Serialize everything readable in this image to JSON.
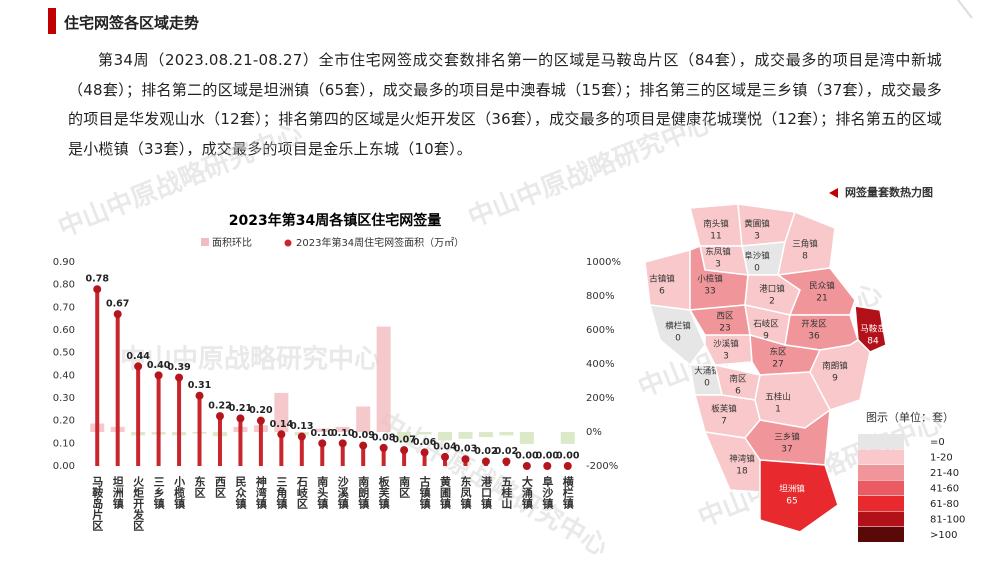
{
  "header": {
    "title": "住宅网签各区域走势"
  },
  "paragraph": "第34周（2023.08.21-08.27）全市住宅网签成交套数排名第一的区域是马鞍岛片区（84套），成交最多的项目是湾中新城（48套）；排名第二的区域是坦洲镇（65套），成交最多的项目是中澳春城（15套）；排名第三的区域是三乡镇（37套），成交最多的项目是华发观山水（12套）；排名第四的区域是火炬开发区（36套），成交最多的项目是健康花城璞悦（12套）；排名第五的区域是小榄镇（33套），成交最多的项目是金乐上东城（10套）。",
  "watermark": "中山中原战略研究中心",
  "chart_data": {
    "type": "bar",
    "title": "2023年第34周各镇区住宅网签量",
    "categories": [
      "马鞍岛片区",
      "坦洲镇",
      "火炬开发区",
      "三乡镇",
      "小榄镇",
      "东区",
      "西区",
      "民众镇",
      "神湾镇",
      "三角镇",
      "石岐区",
      "南头镇",
      "沙溪镇",
      "南朗镇",
      "板芙镇",
      "南区",
      "古镇镇",
      "黄圃镇",
      "东凤镇",
      "港口镇",
      "五桂山",
      "大涌镇",
      "阜沙镇",
      "横栏镇"
    ],
    "series": [
      {
        "name": "面积环比",
        "type": "bar",
        "axis": "y2",
        "color": "#f3bcbf",
        "negative_color": "#d3e4bb",
        "values": [
          50,
          30,
          -20,
          -15,
          -20,
          -10,
          -25,
          30,
          40,
          230,
          -20,
          20,
          30,
          150,
          620,
          -60,
          -15,
          -50,
          -40,
          -30,
          -20,
          -70,
          0,
          -70
        ]
      },
      {
        "name": "2023年第34周住宅网签面积（万㎡）",
        "type": "lollipop",
        "color": "#c8262c",
        "values": [
          0.78,
          0.67,
          0.44,
          0.4,
          0.39,
          0.31,
          0.22,
          0.21,
          0.2,
          0.14,
          0.13,
          0.1,
          0.1,
          0.09,
          0.08,
          0.07,
          0.06,
          0.04,
          0.03,
          0.02,
          0.02,
          0,
          0,
          0
        ],
        "value_labels": [
          "0.78",
          "0.67",
          "0.44",
          "0.40",
          "0.39",
          "0.31",
          "0.22",
          "0.21",
          "0.20",
          "0.14",
          "0.13",
          "0.10",
          "0.10",
          "0.09",
          "0.08",
          "0.07",
          "0.06",
          "0.04",
          "0.03",
          "0.02",
          "0.02",
          "0.00",
          "0.00",
          "0.00"
        ]
      }
    ],
    "ylim": [
      0,
      0.9
    ],
    "yticks": [
      {
        "value": 0,
        "label": "0.00"
      },
      {
        "value": 0.1,
        "label": "0.10"
      },
      {
        "value": 0.2,
        "label": "0.20"
      },
      {
        "value": 0.3,
        "label": "0.30"
      },
      {
        "value": 0.4,
        "label": "0.40"
      },
      {
        "value": 0.5,
        "label": "0.50"
      },
      {
        "value": 0.6,
        "label": "0.60"
      },
      {
        "value": 0.7,
        "label": "0.70"
      },
      {
        "value": 0.8,
        "label": "0.80"
      },
      {
        "value": 0.9,
        "label": "0.90"
      }
    ],
    "y2lim": [
      -200,
      1000
    ],
    "y2ticks": [
      {
        "value": -200,
        "label": "-200%"
      },
      {
        "value": 0,
        "label": "0%"
      },
      {
        "value": 200,
        "label": "200%"
      },
      {
        "value": 400,
        "label": "400%"
      },
      {
        "value": 600,
        "label": "600%"
      },
      {
        "value": 800,
        "label": "800%"
      },
      {
        "value": 1000,
        "label": "1000%"
      }
    ]
  },
  "map": {
    "title": "网签量套数热力图",
    "legend_title": "图示（单位：套）",
    "legend": [
      {
        "label": "=0",
        "color": "#e6e6e6"
      },
      {
        "label": "1-20",
        "color": "#f8c8ca"
      },
      {
        "label": "21-40",
        "color": "#f0969b"
      },
      {
        "label": "41-60",
        "color": "#ea5a62"
      },
      {
        "label": "61-80",
        "color": "#e82a2f"
      },
      {
        "label": "81-100",
        "color": "#b3111a"
      },
      {
        "label": ">100",
        "color": "#5a0808"
      }
    ],
    "regions": [
      {
        "name": "南头镇",
        "value": 11,
        "color": "#f8c8ca"
      },
      {
        "name": "黄圃镇",
        "value": 3,
        "color": "#f8c8ca"
      },
      {
        "name": "阜沙镇",
        "value": 0,
        "color": "#e6e6e6"
      },
      {
        "name": "东凤镇",
        "value": 3,
        "color": "#f8c8ca"
      },
      {
        "name": "三角镇",
        "value": 8,
        "color": "#f8c8ca"
      },
      {
        "name": "古镇镇",
        "value": 6,
        "color": "#f8c8ca"
      },
      {
        "name": "小榄镇",
        "value": 33,
        "color": "#f0969b"
      },
      {
        "name": "港口镇",
        "value": 2,
        "color": "#f8c8ca"
      },
      {
        "name": "民众镇",
        "value": 21,
        "color": "#f0969b"
      },
      {
        "name": "马鞍岛",
        "value": 84,
        "color": "#b3111a"
      },
      {
        "name": "横栏镇",
        "value": 0,
        "color": "#e6e6e6"
      },
      {
        "name": "西区",
        "value": 23,
        "color": "#f0969b"
      },
      {
        "name": "石岐区",
        "value": 9,
        "color": "#f8c8ca"
      },
      {
        "name": "开发区",
        "value": 36,
        "color": "#f0969b"
      },
      {
        "name": "沙溪镇",
        "value": 3,
        "color": "#f8c8ca"
      },
      {
        "name": "东区",
        "value": 27,
        "color": "#f0969b"
      },
      {
        "name": "南朗镇",
        "value": 9,
        "color": "#f8c8ca"
      },
      {
        "name": "大涌镇",
        "value": 0,
        "color": "#e6e6e6"
      },
      {
        "name": "南区",
        "value": 6,
        "color": "#f8c8ca"
      },
      {
        "name": "五桂山",
        "value": 1,
        "color": "#f8c8ca"
      },
      {
        "name": "板芙镇",
        "value": 7,
        "color": "#f8c8ca"
      },
      {
        "name": "三乡镇",
        "value": 37,
        "color": "#f0969b"
      },
      {
        "name": "神湾镇",
        "value": 18,
        "color": "#f8c8ca"
      },
      {
        "name": "坦洲镇",
        "value": 65,
        "color": "#e82a2f"
      }
    ]
  }
}
